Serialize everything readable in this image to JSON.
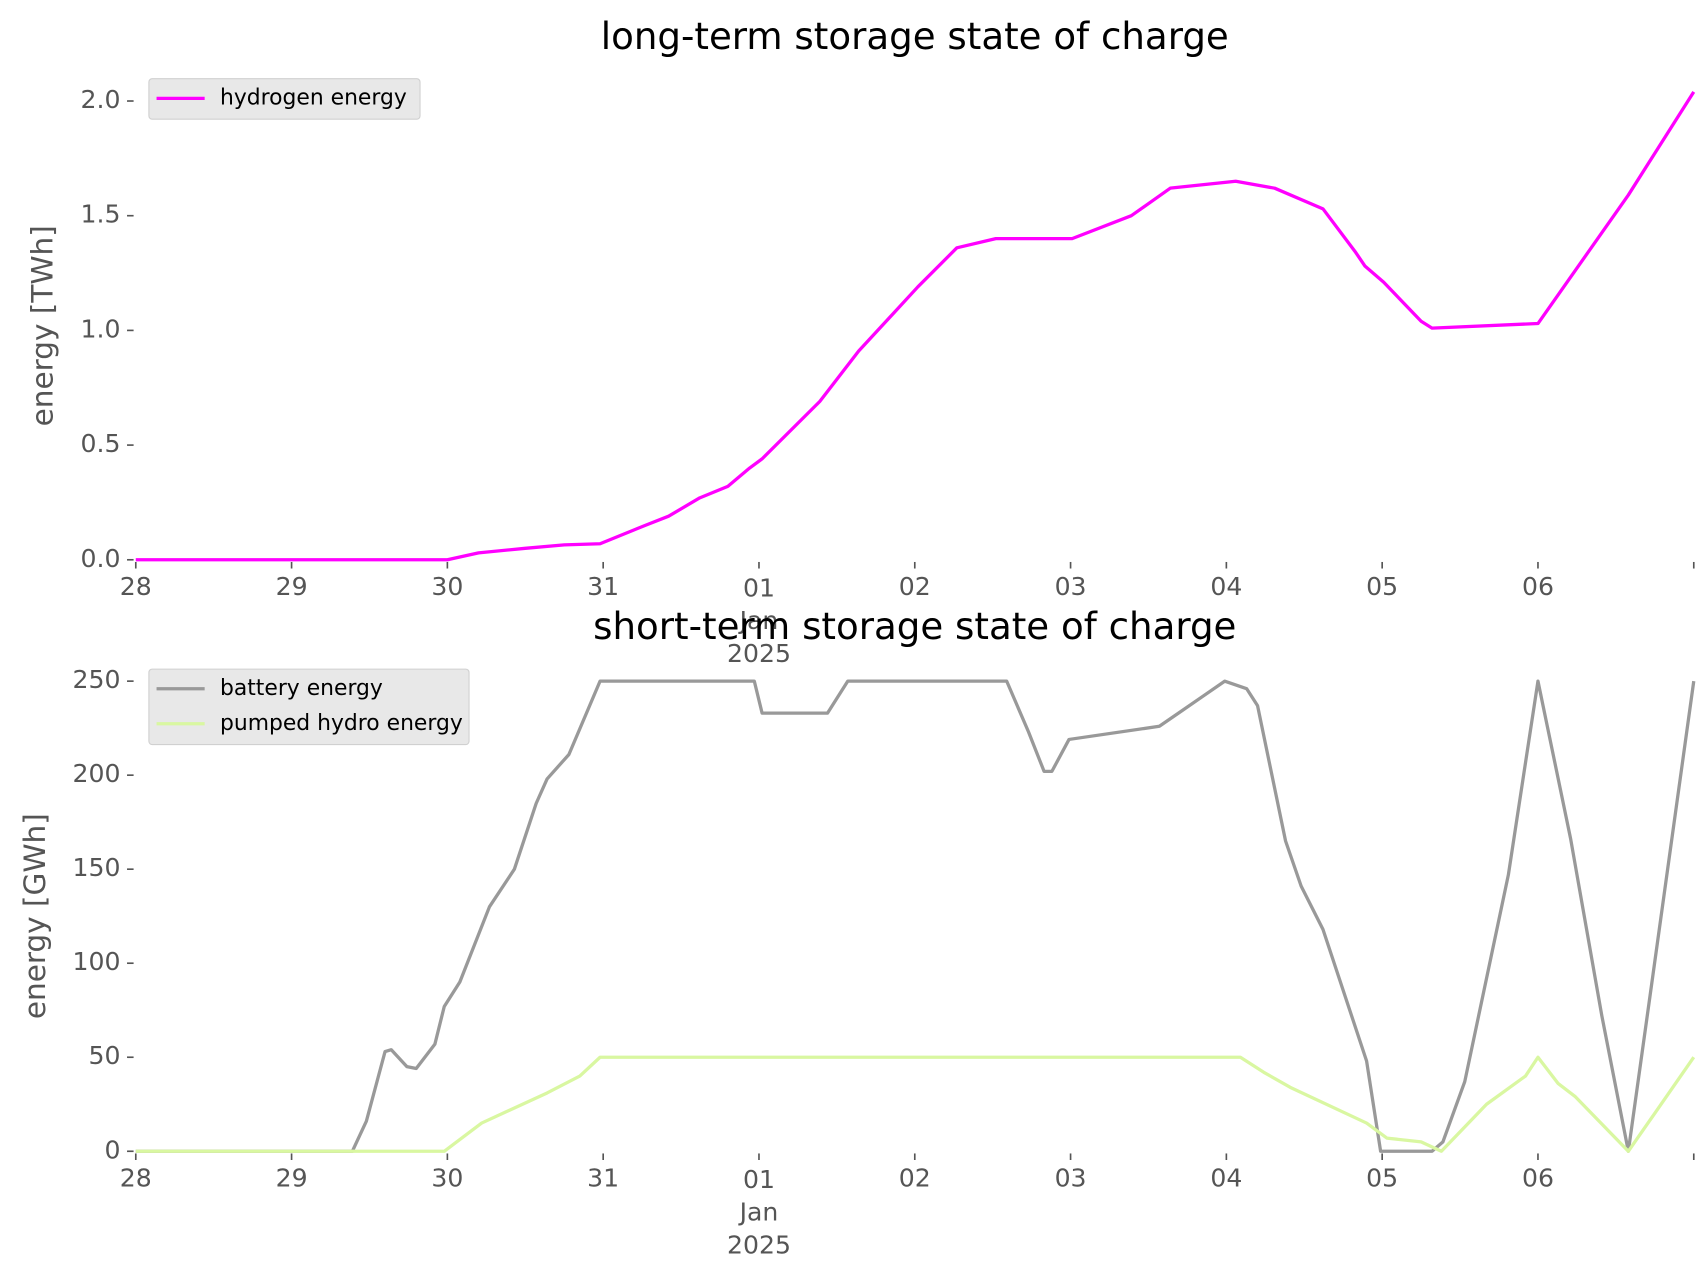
{
  "chart_data": [
    {
      "type": "line",
      "title": "long-term storage state of charge",
      "ylabel": "energy [TWh]",
      "xlim": [
        0,
        10
      ],
      "xticks": [
        {
          "value": 0,
          "label": "28"
        },
        {
          "value": 1,
          "label": "29"
        },
        {
          "value": 2,
          "label": "30"
        },
        {
          "value": 3,
          "label": "31"
        },
        {
          "value": 4,
          "label": [
            "01",
            "Jan",
            "2025"
          ]
        },
        {
          "value": 5,
          "label": "02"
        },
        {
          "value": 6,
          "label": "03"
        },
        {
          "value": 7,
          "label": "04"
        },
        {
          "value": 8,
          "label": "05"
        },
        {
          "value": 9,
          "label": "06"
        },
        {
          "value": 10,
          "label": null
        }
      ],
      "ylim": [
        0,
        2.04
      ],
      "yticks": [
        {
          "value": 0,
          "label": "0.0"
        },
        0.5,
        {
          "value": 1,
          "label": "1.0"
        },
        1.5,
        {
          "value": 2,
          "label": "2.0"
        }
      ],
      "legend": "upper left",
      "series": [
        {
          "name": "hydrogen energy",
          "color": "#ff00ff",
          "x": [
            0,
            1,
            2,
            2.2,
            2.5,
            2.75,
            2.98,
            3.27,
            3.42,
            3.62,
            3.8,
            3.94,
            4.02,
            4.39,
            4.64,
            5.02,
            5.27,
            5.52,
            6.01,
            6.39,
            6.64,
            7.06,
            7.31,
            7.62,
            7.83,
            7.89,
            8.01,
            8.25,
            8.32,
            9.0,
            9.58,
            10
          ],
          "values": [
            0,
            0,
            0,
            0.03,
            0.05,
            0.065,
            0.07,
            0.15,
            0.19,
            0.27,
            0.32,
            0.4,
            0.44,
            0.69,
            0.91,
            1.19,
            1.36,
            1.4,
            1.4,
            1.5,
            1.62,
            1.65,
            1.62,
            1.53,
            1.34,
            1.28,
            1.21,
            1.04,
            1.01,
            1.03,
            1.59,
            2.04
          ]
        }
      ]
    },
    {
      "type": "line",
      "title": "short-term storage state of charge",
      "ylabel": "energy [GWh]",
      "xlim": [
        0,
        10
      ],
      "xticks": [
        {
          "value": 0,
          "label": "28"
        },
        {
          "value": 1,
          "label": "29"
        },
        {
          "value": 2,
          "label": "30"
        },
        {
          "value": 3,
          "label": "31"
        },
        {
          "value": 4,
          "label": [
            "01",
            "Jan",
            "2025"
          ]
        },
        {
          "value": 5,
          "label": "02"
        },
        {
          "value": 6,
          "label": "03"
        },
        {
          "value": 7,
          "label": "04"
        },
        {
          "value": 8,
          "label": "05"
        },
        {
          "value": 9,
          "label": "06"
        },
        {
          "value": 10,
          "label": null
        }
      ],
      "ylim": [
        0,
        250
      ],
      "yticks": [
        0,
        50,
        100,
        150,
        200,
        250
      ],
      "legend": "upper left",
      "series": [
        {
          "name": "battery energy",
          "color": "#999999",
          "x": [
            0,
            1.39,
            1.48,
            1.6,
            1.64,
            1.74,
            1.8,
            1.92,
            1.98,
            2.08,
            2.27,
            2.43,
            2.57,
            2.64,
            2.78,
            2.98,
            3.97,
            4.02,
            4.44,
            4.57,
            5.59,
            5.73,
            5.83,
            5.88,
            5.99,
            6.57,
            6.71,
            6.85,
            6.99,
            7.13,
            7.2,
            7.38,
            7.48,
            7.62,
            7.9,
            7.99,
            8.32,
            8.39,
            8.53,
            8.81,
            9.0,
            9.06,
            9.21,
            9.41,
            9.58,
            9.73,
            10
          ],
          "values": [
            0,
            0,
            16,
            53,
            54,
            45,
            44,
            57,
            77,
            90,
            130,
            150,
            185,
            198,
            211,
            250,
            250,
            233,
            233,
            250,
            250,
            223,
            202,
            202,
            219,
            226,
            234,
            242,
            250,
            246,
            237,
            165,
            141,
            118,
            48,
            0,
            0,
            5,
            37,
            147,
            250,
            226,
            166,
            72,
            0,
            89,
            250
          ]
        },
        {
          "name": "pumped hydro energy",
          "color": "#d9f7a1",
          "x": [
            0,
            1.98,
            2.22,
            2.64,
            2.85,
            2.98,
            7.09,
            7.24,
            7.41,
            7.9,
            8.03,
            8.25,
            8.38,
            8.67,
            8.92,
            9.0,
            9.13,
            9.24,
            9.58,
            10
          ],
          "values": [
            0,
            0,
            15,
            31,
            40,
            50,
            50,
            42,
            34,
            15,
            7,
            5,
            0,
            25,
            40,
            50,
            36,
            29,
            0,
            50
          ]
        }
      ]
    }
  ]
}
